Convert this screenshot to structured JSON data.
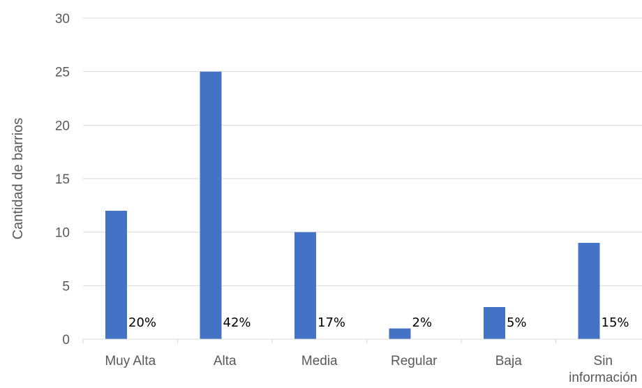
{
  "chart_data": {
    "type": "bar",
    "categories": [
      "Muy Alta",
      "Alta",
      "Media",
      "Regular",
      "Baja",
      "Sin información"
    ],
    "category_lines": [
      [
        "Muy Alta"
      ],
      [
        "Alta"
      ],
      [
        "Media"
      ],
      [
        "Regular"
      ],
      [
        "Baja"
      ],
      [
        "Sin",
        "información"
      ]
    ],
    "values": [
      12,
      25,
      10,
      1,
      3,
      9
    ],
    "data_labels": [
      "20%",
      "42%",
      "17%",
      "2%",
      "5%",
      "15%"
    ],
    "xlabel": "",
    "ylabel": "Cantidad de barrios",
    "ylim": [
      0,
      30
    ],
    "yticks": [
      "0",
      "5",
      "10",
      "15",
      "20",
      "25",
      "30"
    ],
    "grid": true,
    "legend": "none",
    "colors": {
      "bar": "#4472C4",
      "grid": "#D9D9D9",
      "axis_text": "#595959",
      "label_text": "#000000"
    }
  }
}
